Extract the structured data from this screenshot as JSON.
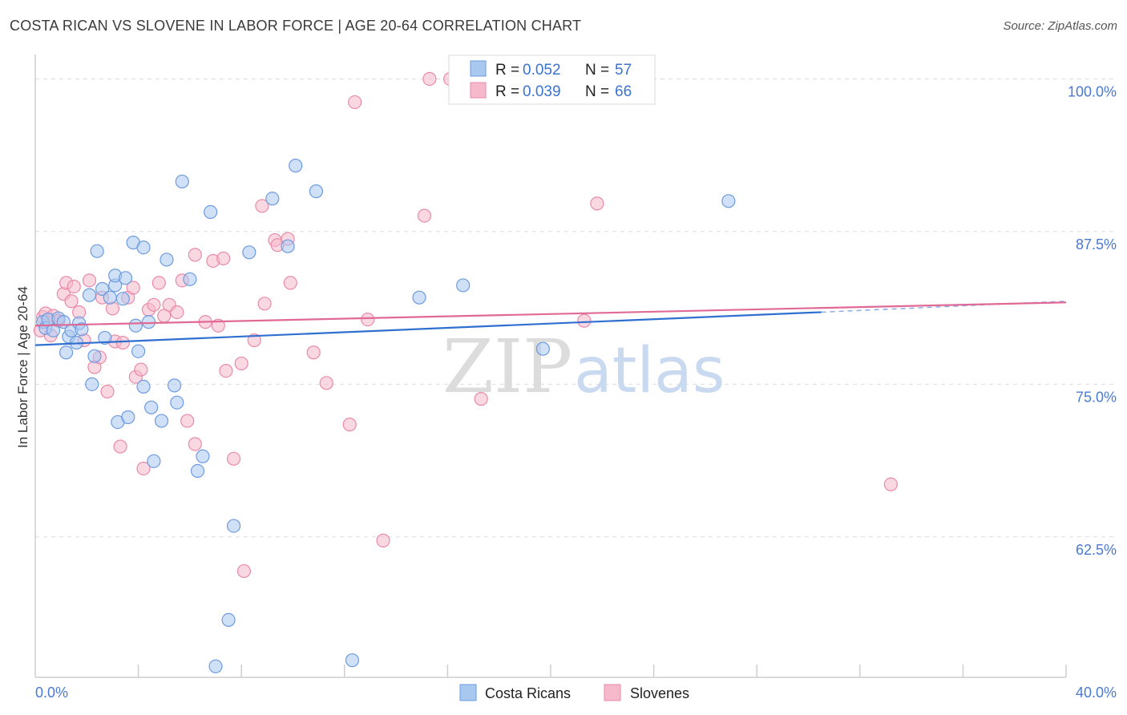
{
  "title": "COSTA RICAN VS SLOVENE IN LABOR FORCE | AGE 20-64 CORRELATION CHART",
  "source": "Source: ZipAtlas.com",
  "watermark": {
    "zip": "ZIP",
    "atlas": "atlas"
  },
  "colors": {
    "blue_fill": "#a9c8f0",
    "blue_stroke": "#6d9be0",
    "blue_line": "#2f6fd0",
    "pink_fill": "#f6b8cb",
    "pink_stroke": "#e98aaa",
    "pink_line": "#e06a95",
    "grid": "#dddddd",
    "tick_text": "#4a7ad0"
  },
  "chart_data": {
    "type": "scatter",
    "title": "COSTA RICAN VS SLOVENE IN LABOR FORCE | AGE 20-64 CORRELATION CHART",
    "xlabel": "",
    "ylabel": "In Labor Force | Age 20-64",
    "xlim": [
      0,
      40
    ],
    "ylim": [
      51,
      102
    ],
    "x_tick_labels": [
      {
        "value": 0,
        "label": "0.0%"
      },
      {
        "value": 40,
        "label": "40.0%"
      }
    ],
    "y_ticks": [
      {
        "value": 100,
        "label": "100.0%"
      },
      {
        "value": 87.5,
        "label": "87.5%"
      },
      {
        "value": 75,
        "label": "75.0%"
      },
      {
        "value": 62.5,
        "label": "62.5%"
      }
    ],
    "legend": [
      {
        "series": "Costa Ricans",
        "r_label": "R =",
        "r": "0.052",
        "n_label": "N =",
        "n": "57"
      },
      {
        "series": "Slovenes",
        "r_label": "R =",
        "r": "0.039",
        "n_label": "N =",
        "n": "66"
      }
    ],
    "series": [
      {
        "name": "Costa Ricans",
        "color": "blue",
        "trend": {
          "x0": 0,
          "y0": 78.2,
          "x1": 30.5,
          "y1": 80.9,
          "dash_to_x": 40,
          "dash_to_y": 81.8
        },
        "points": [
          [
            0.3,
            80.1
          ],
          [
            0.4,
            79.6
          ],
          [
            0.5,
            80.3
          ],
          [
            0.7,
            79.4
          ],
          [
            0.9,
            80.4
          ],
          [
            1.1,
            80.1
          ],
          [
            1.2,
            77.6
          ],
          [
            1.3,
            78.9
          ],
          [
            1.4,
            79.4
          ],
          [
            1.6,
            78.4
          ],
          [
            1.7,
            80.0
          ],
          [
            1.8,
            79.5
          ],
          [
            2.1,
            82.3
          ],
          [
            2.2,
            75.0
          ],
          [
            2.3,
            77.3
          ],
          [
            2.4,
            85.9
          ],
          [
            2.6,
            82.8
          ],
          [
            2.7,
            78.8
          ],
          [
            2.9,
            82.1
          ],
          [
            3.1,
            83.1
          ],
          [
            3.1,
            83.9
          ],
          [
            3.2,
            71.9
          ],
          [
            3.4,
            82.0
          ],
          [
            3.5,
            83.7
          ],
          [
            3.6,
            72.3
          ],
          [
            3.8,
            86.6
          ],
          [
            3.9,
            79.8
          ],
          [
            4.0,
            77.7
          ],
          [
            4.2,
            86.2
          ],
          [
            4.2,
            74.8
          ],
          [
            4.4,
            80.1
          ],
          [
            4.5,
            73.1
          ],
          [
            4.6,
            68.7
          ],
          [
            4.9,
            72.0
          ],
          [
            5.1,
            85.2
          ],
          [
            5.4,
            74.9
          ],
          [
            5.5,
            73.5
          ],
          [
            5.7,
            91.6
          ],
          [
            6.0,
            83.6
          ],
          [
            6.3,
            67.9
          ],
          [
            6.5,
            69.1
          ],
          [
            6.8,
            89.1
          ],
          [
            7.0,
            51.9
          ],
          [
            7.5,
            55.7
          ],
          [
            7.7,
            63.4
          ],
          [
            8.3,
            85.8
          ],
          [
            9.2,
            90.2
          ],
          [
            9.8,
            86.3
          ],
          [
            10.1,
            92.9
          ],
          [
            10.9,
            90.8
          ],
          [
            12.3,
            52.4
          ],
          [
            14.9,
            82.1
          ],
          [
            16.6,
            83.1
          ],
          [
            19.7,
            77.9
          ],
          [
            26.9,
            90.0
          ]
        ]
      },
      {
        "name": "Slovenes",
        "color": "pink",
        "trend": {
          "x0": 0,
          "y0": 79.8,
          "x1": 40,
          "y1": 81.7
        },
        "points": [
          [
            0.2,
            79.4
          ],
          [
            0.3,
            80.5
          ],
          [
            0.4,
            80.8
          ],
          [
            0.6,
            79.0
          ],
          [
            0.7,
            80.6
          ],
          [
            0.9,
            80.2
          ],
          [
            1.1,
            82.4
          ],
          [
            1.2,
            83.3
          ],
          [
            1.4,
            81.8
          ],
          [
            1.5,
            83.0
          ],
          [
            1.7,
            80.9
          ],
          [
            1.9,
            78.6
          ],
          [
            2.1,
            83.5
          ],
          [
            2.3,
            76.4
          ],
          [
            2.5,
            77.2
          ],
          [
            2.6,
            82.1
          ],
          [
            2.8,
            74.4
          ],
          [
            3.0,
            81.2
          ],
          [
            3.1,
            78.5
          ],
          [
            3.3,
            69.9
          ],
          [
            3.4,
            78.4
          ],
          [
            3.6,
            82.1
          ],
          [
            3.8,
            82.9
          ],
          [
            3.9,
            75.6
          ],
          [
            4.1,
            76.2
          ],
          [
            4.2,
            68.1
          ],
          [
            4.4,
            81.1
          ],
          [
            4.6,
            81.5
          ],
          [
            4.8,
            83.3
          ],
          [
            5.0,
            80.6
          ],
          [
            5.2,
            81.5
          ],
          [
            5.5,
            80.9
          ],
          [
            5.7,
            83.5
          ],
          [
            5.9,
            72.0
          ],
          [
            6.2,
            70.1
          ],
          [
            6.2,
            85.6
          ],
          [
            6.6,
            80.1
          ],
          [
            6.9,
            85.1
          ],
          [
            7.1,
            79.8
          ],
          [
            7.3,
            85.3
          ],
          [
            7.4,
            76.1
          ],
          [
            7.7,
            68.9
          ],
          [
            8.0,
            76.7
          ],
          [
            8.1,
            59.7
          ],
          [
            8.5,
            78.6
          ],
          [
            8.8,
            89.6
          ],
          [
            8.9,
            81.6
          ],
          [
            9.3,
            86.8
          ],
          [
            9.4,
            86.4
          ],
          [
            9.8,
            86.9
          ],
          [
            9.9,
            83.3
          ],
          [
            10.8,
            77.6
          ],
          [
            11.3,
            75.1
          ],
          [
            12.2,
            71.7
          ],
          [
            12.4,
            98.1
          ],
          [
            12.9,
            80.3
          ],
          [
            13.5,
            62.2
          ],
          [
            15.1,
            88.8
          ],
          [
            15.3,
            100.0
          ],
          [
            16.1,
            100.0
          ],
          [
            17.3,
            73.8
          ],
          [
            21.3,
            80.2
          ],
          [
            21.8,
            89.8
          ],
          [
            33.2,
            66.8
          ]
        ]
      }
    ]
  }
}
